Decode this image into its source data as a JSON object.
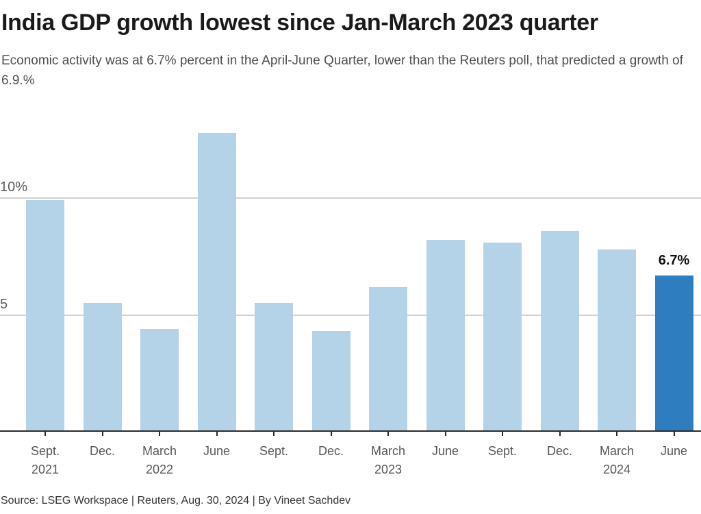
{
  "header": {
    "title": "India GDP growth lowest since Jan-March 2023 quarter",
    "subtitle": "Economic activity was at 6.7% percent in the April-June Quarter, lower than the Reuters poll, that predicted a growth of 6.9.%"
  },
  "chart_data": {
    "type": "bar",
    "title": "India GDP growth lowest since Jan-March 2023 quarter",
    "xlabel": "",
    "ylabel": "",
    "unit": "%",
    "categories": [
      "Sept. 2021",
      "Dec. 2021",
      "March 2022",
      "June 2022",
      "Sept. 2022",
      "Dec. 2022",
      "March 2023",
      "June 2023",
      "Sept. 2023",
      "Dec. 2023",
      "March 2024",
      "June 2024"
    ],
    "month_labels": [
      "Sept.",
      "Dec.",
      "March",
      "June",
      "Sept.",
      "Dec.",
      "March",
      "June",
      "Sept.",
      "Dec.",
      "March",
      "June"
    ],
    "year_labels": [
      "2021",
      "",
      "2022",
      "",
      "",
      "",
      "2023",
      "",
      "",
      "",
      "2024",
      ""
    ],
    "values": [
      9.9,
      5.5,
      4.4,
      12.8,
      5.5,
      4.3,
      6.2,
      8.2,
      8.1,
      8.6,
      7.8,
      6.7
    ],
    "highlight": {
      "index": 11,
      "label": "6.7%"
    },
    "yticks": [
      {
        "value": 5,
        "label": "5"
      },
      {
        "value": 10,
        "label": "10%"
      }
    ],
    "ylim": [
      0,
      13.6
    ],
    "grid": "horizontal-only",
    "legend": "none",
    "colors": {
      "bar": "#b4d2e8",
      "highlight_bar": "#2e7dbe",
      "gridline": "#d2d2d2",
      "axis": "#2b2b2b"
    }
  },
  "footer": {
    "source": "Source: LSEG Workspace | Reuters, Aug. 30, 2024 | By Vineet Sachdev"
  }
}
